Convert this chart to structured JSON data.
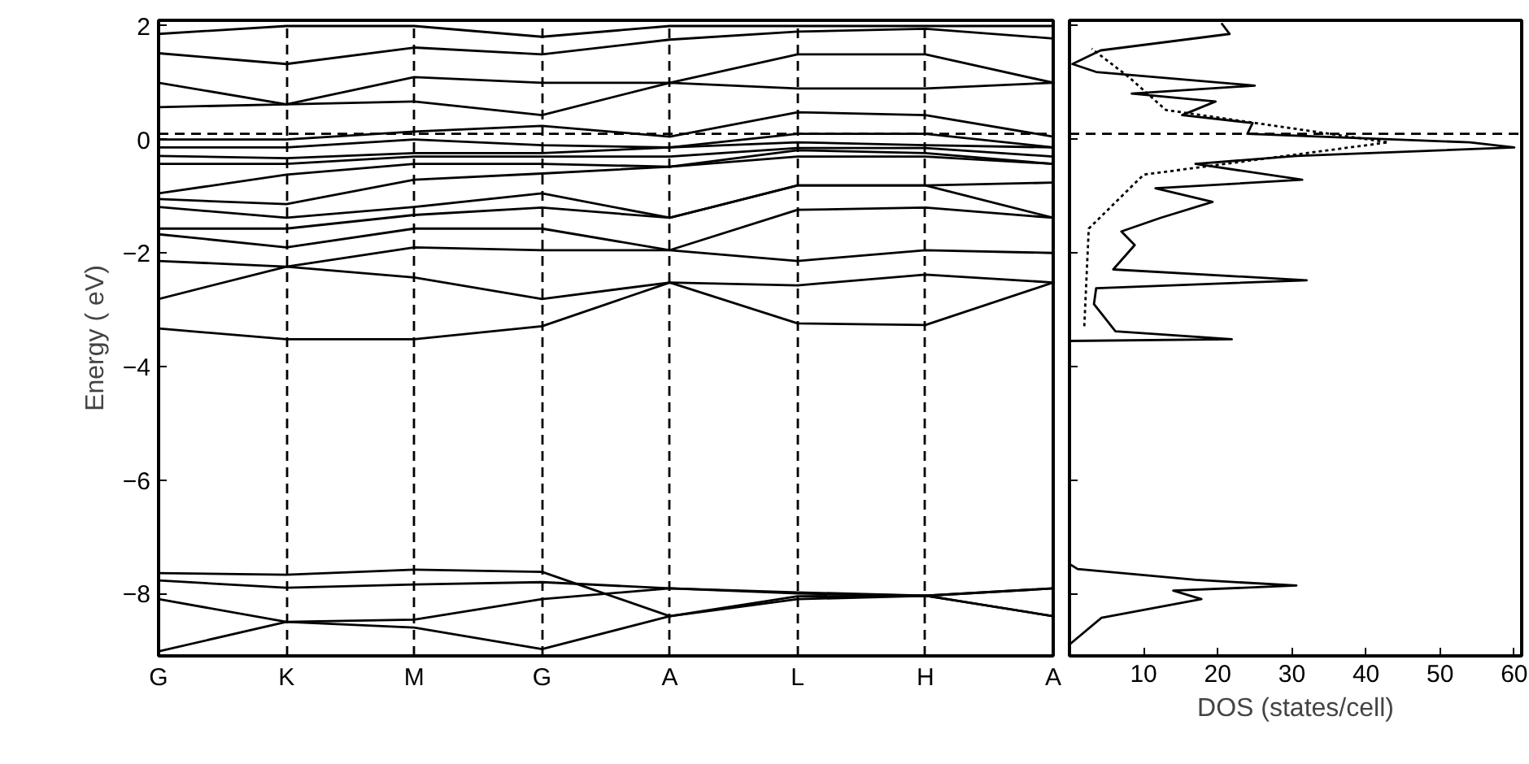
{
  "chart_data": [
    {
      "type": "line",
      "ylabel": "Energy ( eV)",
      "categories": [
        "G",
        "K",
        "M",
        "G",
        "A",
        "L",
        "H",
        "A"
      ],
      "ylim": [
        -9.1,
        2.1
      ],
      "yticks": [
        -8,
        -6,
        -4,
        -2,
        0,
        2
      ],
      "grid": "x",
      "marker": "none",
      "line_style": "solid",
      "ref_lines": [
        {
          "axis": "y",
          "value": 0.1,
          "line_style": "dashed"
        }
      ],
      "series": [
        {
          "color": "#000000",
          "values": [
            -9.02,
            -8.5,
            -8.46,
            -8.1,
            -7.91,
            -7.98,
            -8.04,
            -8.4
          ]
        },
        {
          "color": "#000000",
          "values": [
            -8.1,
            -8.5,
            -8.6,
            -8.98,
            -8.4,
            -8.1,
            -8.04,
            -7.91
          ]
        },
        {
          "color": "#000000",
          "values": [
            -7.77,
            -7.9,
            -7.84,
            -7.8,
            -7.91,
            -8.0,
            -8.04,
            -8.4
          ]
        },
        {
          "color": "#000000",
          "values": [
            -7.64,
            -7.67,
            -7.58,
            -7.62,
            -8.4,
            -8.05,
            -8.04,
            -7.91
          ]
        },
        {
          "color": "#000000",
          "values": [
            -3.33,
            -3.52,
            -3.52,
            -3.29,
            -2.52,
            -3.24,
            -3.27,
            -2.52
          ]
        },
        {
          "color": "#000000",
          "values": [
            -2.81,
            -2.24,
            -2.43,
            -2.81,
            -2.52,
            -2.57,
            -2.38,
            -2.52
          ]
        },
        {
          "color": "#000000",
          "values": [
            -2.14,
            -2.24,
            -1.9,
            -1.95,
            -1.95,
            -2.14,
            -1.95,
            -2.0
          ]
        },
        {
          "color": "#000000",
          "values": [
            -1.67,
            -1.9,
            -1.57,
            -1.57,
            -1.95,
            -1.24,
            -1.2,
            -1.38
          ]
        },
        {
          "color": "#000000",
          "values": [
            -1.57,
            -1.57,
            -1.33,
            -1.2,
            -1.38,
            -0.81,
            -0.81,
            -1.38
          ]
        },
        {
          "color": "#000000",
          "values": [
            -1.19,
            -1.38,
            -1.19,
            -0.95,
            -1.38,
            -0.81,
            -0.81,
            -0.76
          ]
        },
        {
          "color": "#000000",
          "values": [
            -1.05,
            -1.14,
            -0.71,
            -0.6,
            -0.48,
            -0.3,
            -0.3,
            -0.43
          ]
        },
        {
          "color": "#000000",
          "values": [
            -0.95,
            -0.62,
            -0.43,
            -0.43,
            -0.48,
            -0.19,
            -0.24,
            -0.43
          ]
        },
        {
          "color": "#000000",
          "values": [
            -0.43,
            -0.43,
            -0.3,
            -0.3,
            -0.3,
            -0.15,
            -0.15,
            -0.3
          ]
        },
        {
          "color": "#000000",
          "values": [
            -0.29,
            -0.33,
            -0.24,
            -0.24,
            -0.14,
            -0.05,
            -0.1,
            -0.14
          ]
        },
        {
          "color": "#000000",
          "values": [
            -0.14,
            -0.14,
            0.0,
            -0.1,
            -0.14,
            0.1,
            0.1,
            -0.14
          ]
        },
        {
          "color": "#000000",
          "values": [
            0.0,
            0.0,
            0.14,
            0.24,
            0.05,
            0.48,
            0.43,
            0.05
          ]
        },
        {
          "color": "#000000",
          "values": [
            0.57,
            0.62,
            0.67,
            0.43,
            1.0,
            0.9,
            0.9,
            1.0
          ]
        },
        {
          "color": "#000000",
          "values": [
            1.0,
            0.62,
            1.1,
            1.0,
            1.0,
            1.5,
            1.5,
            1.0
          ]
        },
        {
          "color": "#000000",
          "values": [
            1.52,
            1.33,
            1.62,
            1.5,
            1.76,
            1.9,
            1.95,
            1.78
          ]
        },
        {
          "color": "#000000",
          "values": [
            1.86,
            2.0,
            2.0,
            1.81,
            2.0,
            2.0,
            2.0,
            2.0
          ]
        }
      ]
    },
    {
      "type": "line",
      "xlabel": "DOS (states/cell)",
      "xlim": [
        0,
        61
      ],
      "xticks": [
        10,
        20,
        30,
        40,
        50,
        60
      ],
      "ylim": [
        -9.1,
        2.1
      ],
      "yticks": [
        -8,
        -6,
        -4,
        -2,
        0,
        2
      ],
      "tick_labels": "x",
      "grid": false,
      "marker": "none",
      "ref_lines": [
        {
          "axis": "y",
          "value": 0.1,
          "line_style": "dashed"
        }
      ],
      "series": [
        {
          "color": "#000000",
          "line_style": "solid",
          "x": [
            0,
            4.3,
            17.8,
            14,
            30.6,
            17,
            1.1,
            0,
            0,
            21.9,
            6.2,
            3.3,
            3.6,
            32,
            5.9,
            8.8,
            7,
            12.3,
            19.3,
            11.6,
            31.4,
            17,
            30.6,
            60,
            54,
            24,
            24.7,
            15.2,
            19.7,
            8.4,
            25,
            3.6,
            0.4,
            4.2,
            21.6,
            20.5
          ],
          "values": [
            -8.9,
            -8.43,
            -8.1,
            -7.95,
            -7.86,
            -7.76,
            -7.57,
            -7.48,
            -3.55,
            -3.52,
            -3.38,
            -2.9,
            -2.62,
            -2.48,
            -2.29,
            -1.86,
            -1.62,
            -1.38,
            -1.1,
            -0.86,
            -0.71,
            -0.43,
            -0.29,
            -0.14,
            -0.05,
            0.1,
            0.29,
            0.43,
            0.67,
            0.81,
            0.95,
            1.19,
            1.33,
            1.57,
            1.86,
            2.05
          ]
        },
        {
          "color": "#000000",
          "line_style": "dotted",
          "x": [
            2,
            2.6,
            10,
            43,
            13,
            8,
            3
          ],
          "values": [
            -3.29,
            -1.57,
            -0.62,
            -0.05,
            0.52,
            1.1,
            1.6
          ]
        }
      ]
    }
  ]
}
